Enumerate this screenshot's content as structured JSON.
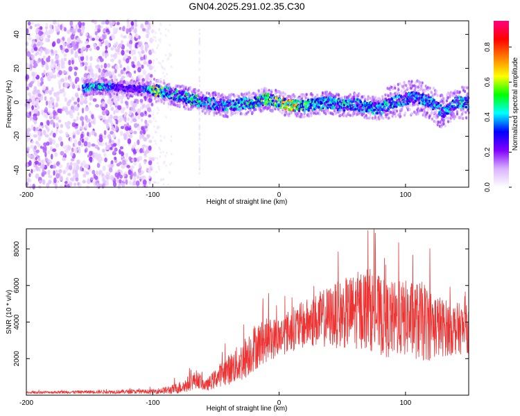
{
  "title": "GN04.2025.291.02.35.C30",
  "chart_data": [
    {
      "type": "heatmap",
      "name": "spectrogram",
      "xlabel": "Height of straight line (km)",
      "ylabel": "Frequency (Hz)",
      "xlim": [
        -200,
        150
      ],
      "ylim": [
        -50,
        48
      ],
      "xticks": [
        -200,
        -100,
        0,
        100
      ],
      "yticks": [
        -40,
        -20,
        0,
        20,
        40
      ],
      "colorbar": {
        "label": "Normalized spectral amplitude",
        "range": [
          0,
          0.95
        ],
        "ticks": [
          0.0,
          0.2,
          0.4,
          0.6,
          0.8
        ],
        "colormap": [
          "#ffffff",
          "#d9b3ff",
          "#8000ff",
          "#0000ff",
          "#00ffff",
          "#00ff00",
          "#ffff00",
          "#ff8000",
          "#ff0000",
          "#ff0080"
        ]
      },
      "ridge": [
        {
          "x": -155,
          "y": 8,
          "amp": 0.4
        },
        {
          "x": -150,
          "y": 9,
          "amp": 0.5
        },
        {
          "x": -140,
          "y": 9,
          "amp": 0.55
        },
        {
          "x": -130,
          "y": 9,
          "amp": 0.35
        },
        {
          "x": -120,
          "y": 8,
          "amp": 0.3
        },
        {
          "x": -110,
          "y": 8,
          "amp": 0.3
        },
        {
          "x": -98,
          "y": 7,
          "amp": 0.75
        },
        {
          "x": -90,
          "y": 6,
          "amp": 0.5
        },
        {
          "x": -80,
          "y": 4,
          "amp": 0.5
        },
        {
          "x": -70,
          "y": 2,
          "amp": 0.55
        },
        {
          "x": -60,
          "y": 0,
          "amp": 0.5
        },
        {
          "x": -50,
          "y": -1,
          "amp": 0.45
        },
        {
          "x": -40,
          "y": -2,
          "amp": 0.45
        },
        {
          "x": -30,
          "y": -1,
          "amp": 0.5
        },
        {
          "x": -20,
          "y": 0,
          "amp": 0.55
        },
        {
          "x": -10,
          "y": 2,
          "amp": 0.6
        },
        {
          "x": 0,
          "y": 0,
          "amp": 0.7
        },
        {
          "x": 10,
          "y": -2,
          "amp": 0.85
        },
        {
          "x": 20,
          "y": -2,
          "amp": 0.6
        },
        {
          "x": 30,
          "y": -1,
          "amp": 0.5
        },
        {
          "x": 40,
          "y": 0,
          "amp": 0.45
        },
        {
          "x": 50,
          "y": -2,
          "amp": 0.5
        },
        {
          "x": 60,
          "y": -1,
          "amp": 0.45
        },
        {
          "x": 70,
          "y": -3,
          "amp": 0.5
        },
        {
          "x": 80,
          "y": -4,
          "amp": 0.45
        },
        {
          "x": 90,
          "y": 0,
          "amp": 0.5
        },
        {
          "x": 100,
          "y": 2,
          "amp": 0.45
        },
        {
          "x": 110,
          "y": 3,
          "amp": 0.4
        },
        {
          "x": 120,
          "y": 0,
          "amp": 0.45
        },
        {
          "x": 130,
          "y": -6,
          "amp": 0.45
        },
        {
          "x": 140,
          "y": 0,
          "amp": 0.5
        },
        {
          "x": 150,
          "y": 0,
          "amp": 0.45
        }
      ]
    },
    {
      "type": "line",
      "name": "snr",
      "xlabel": "Height of straight line (km)",
      "ylabel": "SNR (10 * v/v)",
      "xlim": [
        -200,
        150
      ],
      "ylim": [
        0,
        9100
      ],
      "xticks": [
        -200,
        -100,
        0,
        100
      ],
      "yticks": [
        2000,
        4000,
        6000,
        8000
      ],
      "color": "#ee3333",
      "envelope": [
        {
          "x": -200,
          "mean": 150,
          "spread": 60
        },
        {
          "x": -150,
          "mean": 180,
          "spread": 90
        },
        {
          "x": -100,
          "mean": 200,
          "spread": 120
        },
        {
          "x": -85,
          "mean": 300,
          "spread": 250
        },
        {
          "x": -75,
          "mean": 500,
          "spread": 400
        },
        {
          "x": -65,
          "mean": 900,
          "spread": 500
        },
        {
          "x": -58,
          "mean": 500,
          "spread": 300
        },
        {
          "x": -45,
          "mean": 1200,
          "spread": 700
        },
        {
          "x": -30,
          "mean": 1800,
          "spread": 1100
        },
        {
          "x": -20,
          "mean": 2600,
          "spread": 1300
        },
        {
          "x": -10,
          "mean": 3000,
          "spread": 1200
        },
        {
          "x": 0,
          "mean": 3200,
          "spread": 1100
        },
        {
          "x": 10,
          "mean": 3600,
          "spread": 1200
        },
        {
          "x": 25,
          "mean": 4000,
          "spread": 1400
        },
        {
          "x": 40,
          "mean": 4300,
          "spread": 1700
        },
        {
          "x": 55,
          "mean": 4500,
          "spread": 2000
        },
        {
          "x": 70,
          "mean": 4800,
          "spread": 2300
        },
        {
          "x": 85,
          "mean": 4100,
          "spread": 2100
        },
        {
          "x": 100,
          "mean": 4200,
          "spread": 2100
        },
        {
          "x": 115,
          "mean": 4000,
          "spread": 2200
        },
        {
          "x": 130,
          "mean": 3700,
          "spread": 1600
        },
        {
          "x": 150,
          "mean": 3600,
          "spread": 1300
        }
      ]
    }
  ]
}
